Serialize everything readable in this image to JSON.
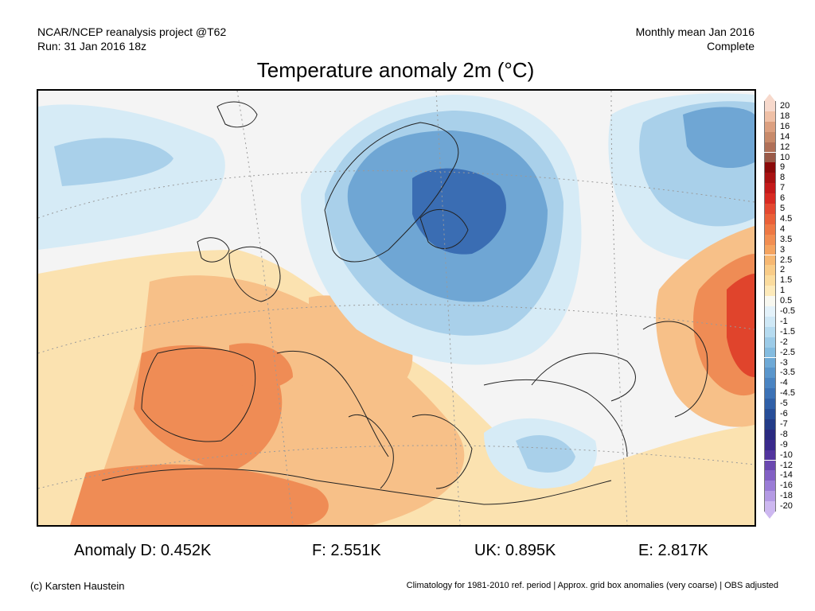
{
  "header": {
    "source": "NCAR/NCEP reanalysis project @T62",
    "run": "Run: 31 Jan 2016 18z",
    "period": "Monthly mean Jan 2016",
    "status": "Complete"
  },
  "title": "Temperature anomaly 2m (°C)",
  "colorbar": {
    "labels": [
      "20",
      "18",
      "16",
      "14",
      "12",
      "10",
      "9",
      "8",
      "7",
      "6",
      "5",
      "4.5",
      "4",
      "3.5",
      "3",
      "2.5",
      "2",
      "1.5",
      "1",
      "0.5",
      "-0.5",
      "-1",
      "-1.5",
      "-2",
      "-2.5",
      "-3",
      "-3.5",
      "-4",
      "-4.5",
      "-5",
      "-6",
      "-7",
      "-8",
      "-9",
      "-10",
      "-12",
      "-14",
      "-16",
      "-18",
      "-20"
    ],
    "colors": [
      "#f7d9cc",
      "#efc0a6",
      "#dca080",
      "#c88a6a",
      "#b07058",
      "#9a5a48",
      "#8a0a0a",
      "#a81212",
      "#c41a1a",
      "#d82a22",
      "#e44830",
      "#ea6038",
      "#ee7844",
      "#f28e52",
      "#f5a460",
      "#f7b872",
      "#f9cc88",
      "#fbdc9e",
      "#fdeaba",
      "#f8f8f0",
      "#e4f2fa",
      "#cfe8f6",
      "#b6dbf0",
      "#9ccbe8",
      "#84bce0",
      "#6ea9d6",
      "#5a96cc",
      "#4a84c2",
      "#3c72b6",
      "#3060a8",
      "#274e98",
      "#233c88",
      "#2a2a80",
      "#3a2a8c",
      "#52349e",
      "#6a48b0",
      "#8260c4",
      "#9a7cd6",
      "#b49ae4",
      "#cdb8f0"
    ]
  },
  "map": {
    "region": "Europe",
    "palette": {
      "strong_cold": "#3a6db3",
      "cold": "#6fa6d4",
      "cool": "#a9d0ea",
      "slight_cool": "#d6ebf6",
      "neutral": "#f4f4f4",
      "slight_warm": "#fbe2b0",
      "warm": "#f7c088",
      "hot": "#ef8c55",
      "very_hot": "#e0442c"
    }
  },
  "stats": [
    {
      "label": "Anomaly D: 0.452K"
    },
    {
      "label": "F: 2.551K"
    },
    {
      "label": "UK: 0.895K"
    },
    {
      "label": "E: 2.817K"
    }
  ],
  "footer": {
    "credit": "(c) Karsten Haustein",
    "climatology": "Climatology for 1981-2010 ref. period | Approx. grid box anomalies (very coarse) | OBS adjusted"
  }
}
